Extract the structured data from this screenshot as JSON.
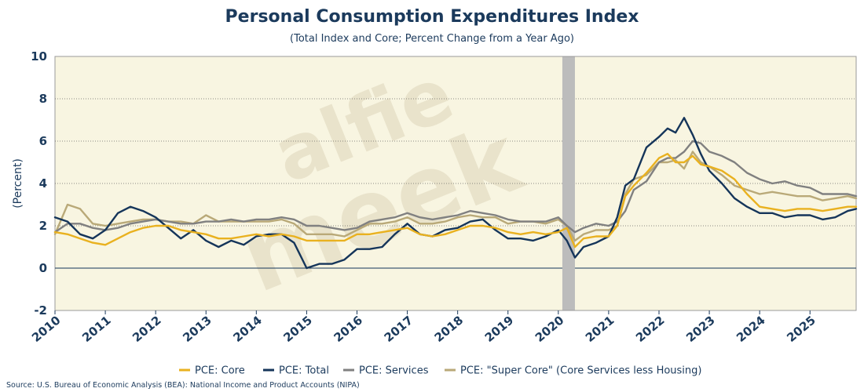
{
  "chart_data": {
    "type": "line",
    "title": "Personal Consumption Expenditures Index",
    "subtitle": "(Total Index and Core; Percent Change from a Year Ago)",
    "ylabel": "(Percent)",
    "xlabel": "",
    "xlim": [
      2010.0,
      2025.917
    ],
    "ylim": [
      -2,
      10
    ],
    "y_ticks": [
      -2,
      0,
      2,
      4,
      6,
      8,
      10
    ],
    "x_ticks": [
      2010,
      2011,
      2012,
      2013,
      2014,
      2015,
      2016,
      2017,
      2018,
      2019,
      2020,
      2021,
      2022,
      2023,
      2024,
      2025
    ],
    "x_tick_labels": [
      "2010",
      "2011",
      "2012",
      "2013",
      "2014",
      "2015",
      "2016",
      "2017",
      "2018",
      "2019",
      "2020",
      "2021",
      "2022",
      "2023",
      "2024",
      "2025"
    ],
    "grid": "horizontal dotted",
    "zero_line": true,
    "recession_bands": [
      [
        2020.08,
        2020.33
      ]
    ],
    "legend_position": "bottom",
    "watermark": [
      "alfie",
      "meek"
    ],
    "colors": {
      "background": "#f8f5e1",
      "core": "#e9b11f",
      "total": "#15355a",
      "services": "#808080",
      "supercore": "#b9a978",
      "recession": "#bcbcbc",
      "text": "#1b3a5c"
    },
    "series": [
      {
        "name": "PCE: Core",
        "color": "#e9b11f",
        "x": [
          2010.0,
          2010.25,
          2010.5,
          2010.75,
          2011.0,
          2011.25,
          2011.5,
          2011.75,
          2012.0,
          2012.25,
          2012.5,
          2012.75,
          2013.0,
          2013.25,
          2013.5,
          2013.75,
          2014.0,
          2014.25,
          2014.5,
          2014.75,
          2015.0,
          2015.25,
          2015.5,
          2015.75,
          2016.0,
          2016.25,
          2016.5,
          2016.75,
          2017.0,
          2017.25,
          2017.5,
          2017.75,
          2018.0,
          2018.25,
          2018.5,
          2018.75,
          2019.0,
          2019.25,
          2019.5,
          2019.75,
          2020.0,
          2020.17,
          2020.33,
          2020.5,
          2020.75,
          2021.0,
          2021.17,
          2021.33,
          2021.5,
          2021.75,
          2022.0,
          2022.17,
          2022.33,
          2022.5,
          2022.67,
          2022.83,
          2023.0,
          2023.25,
          2023.5,
          2023.75,
          2024.0,
          2024.25,
          2024.5,
          2024.75,
          2025.0,
          2025.25,
          2025.5,
          2025.75,
          2025.917
        ],
        "y": [
          1.7,
          1.6,
          1.4,
          1.2,
          1.1,
          1.4,
          1.7,
          1.9,
          2.0,
          2.0,
          1.8,
          1.7,
          1.6,
          1.4,
          1.4,
          1.5,
          1.6,
          1.5,
          1.6,
          1.5,
          1.3,
          1.3,
          1.3,
          1.3,
          1.6,
          1.6,
          1.7,
          1.8,
          1.9,
          1.6,
          1.5,
          1.6,
          1.8,
          2.0,
          2.0,
          1.9,
          1.7,
          1.6,
          1.7,
          1.6,
          1.7,
          1.9,
          1.0,
          1.4,
          1.5,
          1.5,
          2.0,
          3.4,
          3.9,
          4.5,
          5.2,
          5.4,
          5.0,
          5.0,
          5.3,
          4.9,
          4.8,
          4.6,
          4.2,
          3.5,
          2.9,
          2.8,
          2.7,
          2.8,
          2.8,
          2.7,
          2.8,
          2.9,
          2.9
        ]
      },
      {
        "name": "PCE: Total",
        "color": "#15355a",
        "x": [
          2010.0,
          2010.25,
          2010.5,
          2010.75,
          2011.0,
          2011.25,
          2011.5,
          2011.75,
          2012.0,
          2012.25,
          2012.5,
          2012.75,
          2013.0,
          2013.25,
          2013.5,
          2013.75,
          2014.0,
          2014.25,
          2014.5,
          2014.75,
          2015.0,
          2015.25,
          2015.5,
          2015.75,
          2016.0,
          2016.25,
          2016.5,
          2016.75,
          2017.0,
          2017.25,
          2017.5,
          2017.75,
          2018.0,
          2018.25,
          2018.5,
          2018.75,
          2019.0,
          2019.25,
          2019.5,
          2019.75,
          2020.0,
          2020.17,
          2020.33,
          2020.5,
          2020.75,
          2021.0,
          2021.17,
          2021.33,
          2021.5,
          2021.75,
          2022.0,
          2022.17,
          2022.33,
          2022.5,
          2022.67,
          2022.83,
          2023.0,
          2023.25,
          2023.5,
          2023.75,
          2024.0,
          2024.25,
          2024.5,
          2024.75,
          2025.0,
          2025.25,
          2025.5,
          2025.75,
          2025.917
        ],
        "y": [
          2.4,
          2.2,
          1.6,
          1.4,
          1.8,
          2.6,
          2.9,
          2.7,
          2.4,
          1.9,
          1.4,
          1.8,
          1.3,
          1.0,
          1.3,
          1.1,
          1.5,
          1.6,
          1.6,
          1.2,
          0.0,
          0.2,
          0.2,
          0.4,
          0.9,
          0.9,
          1.0,
          1.6,
          2.1,
          1.6,
          1.5,
          1.8,
          1.9,
          2.2,
          2.3,
          1.8,
          1.4,
          1.4,
          1.3,
          1.5,
          1.8,
          1.3,
          0.5,
          1.0,
          1.2,
          1.5,
          2.4,
          3.9,
          4.2,
          5.7,
          6.2,
          6.6,
          6.4,
          7.1,
          6.3,
          5.4,
          4.6,
          4.0,
          3.3,
          2.9,
          2.6,
          2.6,
          2.4,
          2.5,
          2.5,
          2.3,
          2.4,
          2.7,
          2.8
        ]
      },
      {
        "name": "PCE: Services",
        "color": "#808080",
        "x": [
          2010.0,
          2010.25,
          2010.5,
          2010.75,
          2011.0,
          2011.25,
          2011.5,
          2011.75,
          2012.0,
          2012.25,
          2012.5,
          2012.75,
          2013.0,
          2013.25,
          2013.5,
          2013.75,
          2014.0,
          2014.25,
          2014.5,
          2014.75,
          2015.0,
          2015.25,
          2015.5,
          2015.75,
          2016.0,
          2016.25,
          2016.5,
          2016.75,
          2017.0,
          2017.25,
          2017.5,
          2017.75,
          2018.0,
          2018.25,
          2018.5,
          2018.75,
          2019.0,
          2019.25,
          2019.5,
          2019.75,
          2020.0,
          2020.17,
          2020.33,
          2020.5,
          2020.75,
          2021.0,
          2021.17,
          2021.33,
          2021.5,
          2021.75,
          2022.0,
          2022.17,
          2022.33,
          2022.5,
          2022.67,
          2022.83,
          2023.0,
          2023.25,
          2023.5,
          2023.75,
          2024.0,
          2024.25,
          2024.5,
          2024.75,
          2025.0,
          2025.25,
          2025.5,
          2025.75,
          2025.917
        ],
        "y": [
          1.7,
          2.1,
          2.1,
          1.9,
          1.8,
          1.9,
          2.1,
          2.2,
          2.3,
          2.2,
          2.1,
          2.1,
          2.2,
          2.2,
          2.3,
          2.2,
          2.3,
          2.3,
          2.4,
          2.3,
          2.0,
          2.0,
          1.9,
          1.8,
          1.9,
          2.2,
          2.3,
          2.4,
          2.6,
          2.4,
          2.3,
          2.4,
          2.5,
          2.7,
          2.6,
          2.5,
          2.3,
          2.2,
          2.2,
          2.2,
          2.4,
          2.0,
          1.7,
          1.9,
          2.1,
          2.0,
          2.2,
          2.7,
          3.7,
          4.1,
          5.0,
          5.2,
          5.2,
          5.5,
          6.0,
          5.9,
          5.5,
          5.3,
          5.0,
          4.5,
          4.2,
          4.0,
          4.1,
          3.9,
          3.8,
          3.5,
          3.5,
          3.5,
          3.4
        ]
      },
      {
        "name": "PCE: \"Super Core\" (Core Services less Housing)",
        "color": "#b9a978",
        "x": [
          2010.0,
          2010.25,
          2010.5,
          2010.75,
          2011.0,
          2011.25,
          2011.5,
          2011.75,
          2012.0,
          2012.25,
          2012.5,
          2012.75,
          2013.0,
          2013.25,
          2013.5,
          2013.75,
          2014.0,
          2014.25,
          2014.5,
          2014.75,
          2015.0,
          2015.25,
          2015.5,
          2015.75,
          2016.0,
          2016.25,
          2016.5,
          2016.75,
          2017.0,
          2017.25,
          2017.5,
          2017.75,
          2018.0,
          2018.25,
          2018.5,
          2018.75,
          2019.0,
          2019.25,
          2019.5,
          2019.75,
          2020.0,
          2020.17,
          2020.33,
          2020.5,
          2020.75,
          2021.0,
          2021.17,
          2021.33,
          2021.5,
          2021.75,
          2022.0,
          2022.17,
          2022.33,
          2022.5,
          2022.67,
          2022.83,
          2023.0,
          2023.25,
          2023.5,
          2023.75,
          2024.0,
          2024.25,
          2024.5,
          2024.75,
          2025.0,
          2025.25,
          2025.5,
          2025.75,
          2025.917
        ],
        "y": [
          1.6,
          3.0,
          2.8,
          2.1,
          2.0,
          2.1,
          2.2,
          2.3,
          2.3,
          2.2,
          2.2,
          2.1,
          2.5,
          2.2,
          2.2,
          2.2,
          2.2,
          2.2,
          2.3,
          2.1,
          1.6,
          1.6,
          1.6,
          1.5,
          1.8,
          2.1,
          2.1,
          2.2,
          2.4,
          2.1,
          2.1,
          2.2,
          2.4,
          2.5,
          2.4,
          2.4,
          2.1,
          2.2,
          2.2,
          2.1,
          2.3,
          2.0,
          1.3,
          1.6,
          1.8,
          1.8,
          2.0,
          3.5,
          4.2,
          4.4,
          5.0,
          5.0,
          5.1,
          4.7,
          5.5,
          5.0,
          4.8,
          4.4,
          3.9,
          3.7,
          3.5,
          3.6,
          3.5,
          3.4,
          3.4,
          3.2,
          3.3,
          3.4,
          3.3
        ]
      }
    ]
  },
  "source": "Source: U.S. Bureau of Economic Analysis (BEA): National Income and Product Accounts (NIPA)"
}
